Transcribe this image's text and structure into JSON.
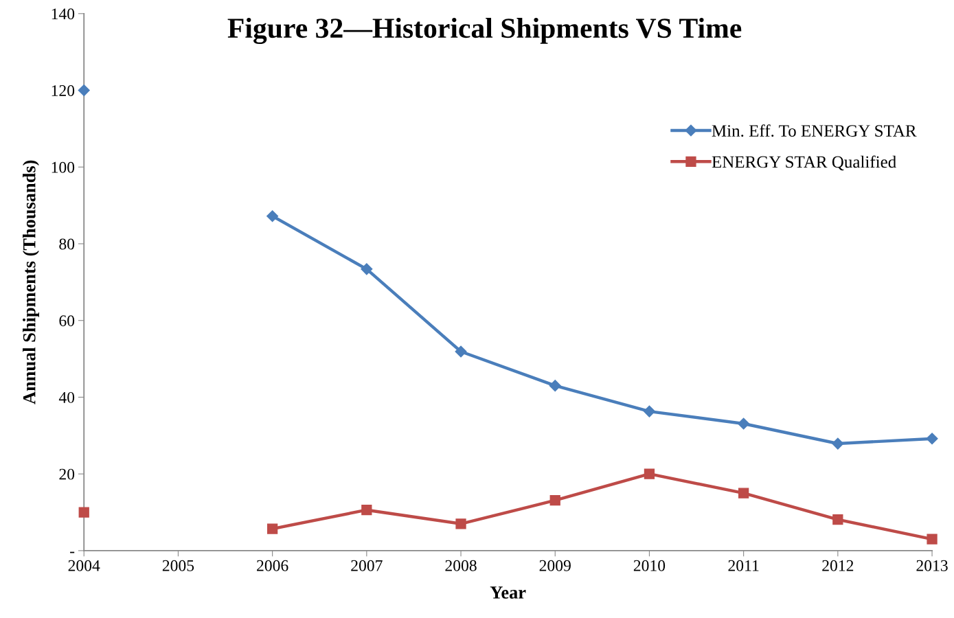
{
  "chart_data": {
    "type": "line",
    "title": "Figure 32—Historical Shipments VS Time",
    "xlabel": "Year",
    "ylabel": "Annual Shipments (Thousands)",
    "x": [
      2004,
      2005,
      2006,
      2007,
      2008,
      2009,
      2010,
      2011,
      2012,
      2013
    ],
    "series": [
      {
        "name": "Min. Eff. To ENERGY STAR",
        "color": "#4a7ebb",
        "marker": "diamond",
        "values": [
          120,
          null,
          87.2,
          73.4,
          51.9,
          43.0,
          36.3,
          33.1,
          27.9,
          29.2
        ]
      },
      {
        "name": "ENERGY STAR Qualified",
        "color": "#be4b48",
        "marker": "square",
        "values": [
          10.0,
          null,
          5.7,
          10.6,
          7.0,
          13.1,
          20.0,
          15.0,
          8.1,
          3.0
        ]
      }
    ],
    "xlim": [
      2004,
      2013
    ],
    "xticks": [
      2004,
      2005,
      2006,
      2007,
      2008,
      2009,
      2010,
      2011,
      2012,
      2013
    ],
    "ylim": [
      0,
      140
    ],
    "yticks": [
      {
        "value": 0,
        "label": "-"
      },
      20,
      40,
      60,
      80,
      100,
      120,
      140
    ],
    "grid": false,
    "legend": "right",
    "line_style": "solid"
  }
}
